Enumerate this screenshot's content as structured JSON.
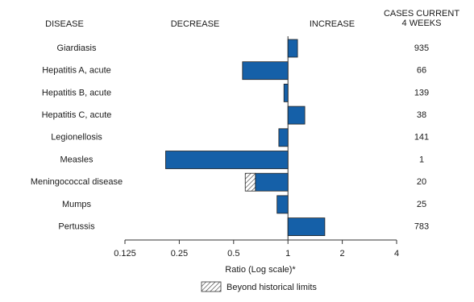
{
  "chart_data": {
    "type": "bar",
    "orientation": "horizontal",
    "log_scale": true,
    "headers": {
      "disease": "DISEASE",
      "decrease": "DECREASE",
      "increase": "INCREASE",
      "cases": [
        "CASES CURRENT",
        "4 WEEKS"
      ]
    },
    "categories": [
      "Giardiasis",
      "Hepatitis A, acute",
      "Hepatitis B, acute",
      "Hepatitis C, acute",
      "Legionellosis",
      "Measles",
      "Meningococcal disease",
      "Mumps",
      "Pertussis"
    ],
    "values": [
      1.13,
      0.56,
      0.95,
      1.24,
      0.89,
      0.21,
      0.58,
      0.87,
      1.6
    ],
    "historical_limits": [
      null,
      null,
      null,
      null,
      null,
      null,
      0.66,
      null,
      null
    ],
    "cases_current_4_weeks": [
      935,
      66,
      139,
      38,
      141,
      1,
      20,
      25,
      783
    ],
    "color": "#1560a8",
    "xlim": [
      0.125,
      4
    ],
    "xticks": [
      0.125,
      0.25,
      0.5,
      1,
      2,
      4
    ],
    "x_axis_label": "Ratio (Log scale)*",
    "legend": "Beyond historical limits"
  }
}
